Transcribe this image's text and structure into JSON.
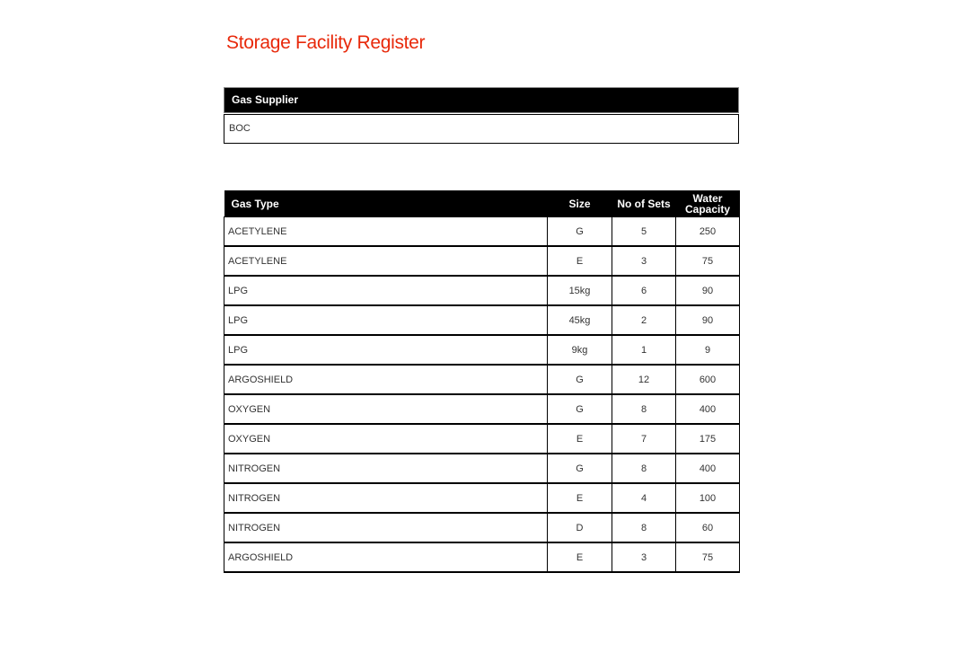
{
  "title": "Storage Facility Register",
  "supplier": {
    "header": "Gas Supplier",
    "value": "BOC"
  },
  "colors": {
    "title": "#e8290b",
    "header_bg": "#000000"
  },
  "table": {
    "columns": [
      "Gas Type",
      "Size",
      "No of Sets",
      "Water Capacity"
    ],
    "rows": [
      [
        "ACETYLENE",
        "G",
        "5",
        "250"
      ],
      [
        "ACETYLENE",
        "E",
        "3",
        "75"
      ],
      [
        "LPG",
        "15kg",
        "6",
        "90"
      ],
      [
        "LPG",
        "45kg",
        "2",
        "90"
      ],
      [
        "LPG",
        "9kg",
        "1",
        "9"
      ],
      [
        "ARGOSHIELD",
        "G",
        "12",
        "600"
      ],
      [
        "OXYGEN",
        "G",
        "8",
        "400"
      ],
      [
        "OXYGEN",
        "E",
        "7",
        "175"
      ],
      [
        "NITROGEN",
        "G",
        "8",
        "400"
      ],
      [
        "NITROGEN",
        "E",
        "4",
        "100"
      ],
      [
        "NITROGEN",
        "D",
        "8",
        "60"
      ],
      [
        "ARGOSHIELD",
        "E",
        "3",
        "75"
      ]
    ]
  }
}
